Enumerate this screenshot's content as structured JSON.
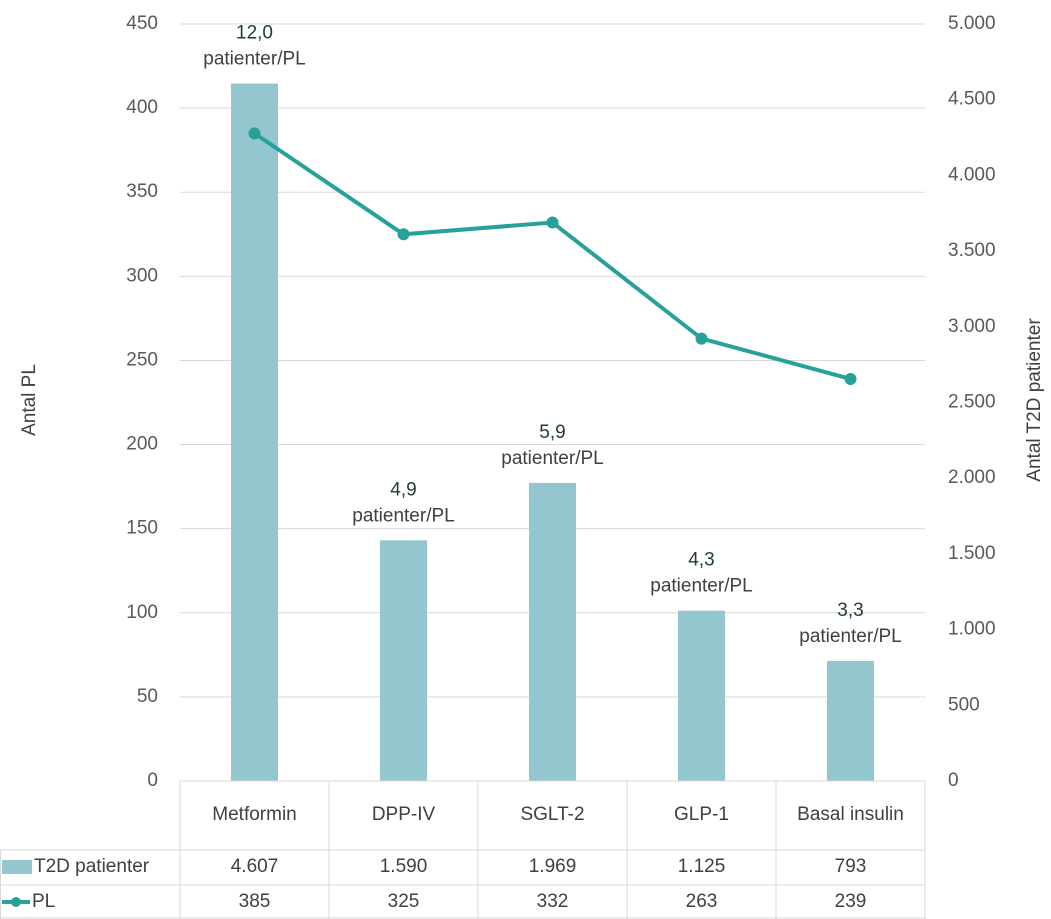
{
  "chart_data": {
    "type": "bar-line",
    "categories": [
      "Metformin",
      "DPP-IV",
      "SGLT-2",
      "GLP-1",
      "Basal insulin"
    ],
    "series": [
      {
        "name": "T2D patienter",
        "type": "bar",
        "axis": "y2",
        "color": "#93c6cf",
        "values": [
          4607,
          1590,
          1969,
          1125,
          793
        ],
        "value_labels": [
          "4.607",
          "1.590",
          "1.969",
          "1.125",
          "793"
        ]
      },
      {
        "name": "PL",
        "type": "line",
        "axis": "y",
        "color": "#28a19b",
        "values": [
          385,
          325,
          332,
          263,
          239
        ]
      }
    ],
    "bar_labels": {
      "values": [
        12.0,
        4.9,
        5.9,
        4.3,
        3.3
      ],
      "value_labels": [
        "12,0",
        "4,9",
        "5,9",
        "4,3",
        "3,3"
      ],
      "unit": "patienter/PL"
    },
    "ylabel": "Antal PL",
    "y2label": "Antal T2D patienter",
    "ylim": [
      0,
      450
    ],
    "yticks": [
      0,
      50,
      100,
      150,
      200,
      250,
      300,
      350,
      400,
      450
    ],
    "y2lim": [
      0,
      5000
    ],
    "y2ticks": [
      0,
      500,
      {
        "value": 1000,
        "label": "1.000"
      },
      {
        "value": 1500,
        "label": "1.500"
      },
      {
        "value": 2000,
        "label": "2.000"
      },
      {
        "value": 2500,
        "label": "2.500"
      },
      {
        "value": 3000,
        "label": "3.000"
      },
      {
        "value": 3500,
        "label": "3.500"
      },
      {
        "value": 4000,
        "label": "4.000"
      },
      {
        "value": 4500,
        "label": "4.500"
      },
      {
        "value": 5000,
        "label": "5.000"
      }
    ],
    "grid": true,
    "data_table": true
  }
}
